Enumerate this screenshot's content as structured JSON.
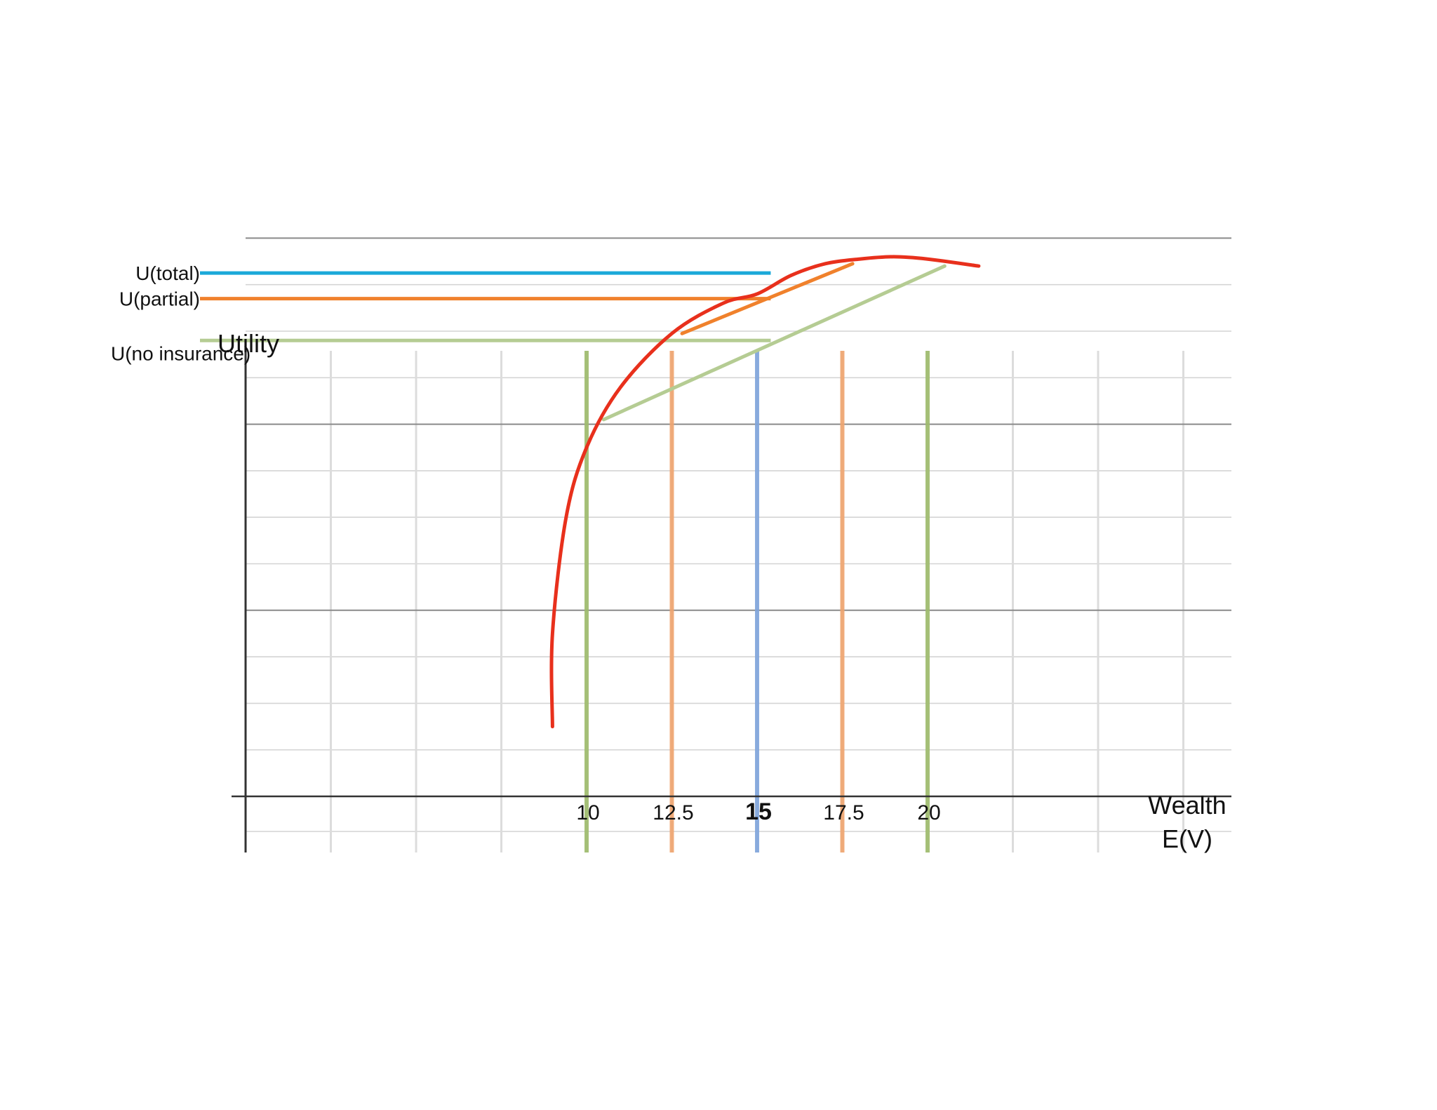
{
  "chart_data": {
    "type": "line",
    "title": "",
    "ylabel": "Utility",
    "xlabel": [
      "Wealth",
      "E(V)"
    ],
    "x_ticks": [
      {
        "value": 10,
        "label": "10",
        "color": "#9dbb6c",
        "bold": false
      },
      {
        "value": 12.5,
        "label": "12.5",
        "color": "#f0a46e",
        "bold": false
      },
      {
        "value": 15,
        "label": "15",
        "color": "#7ea4dc",
        "bold": true
      },
      {
        "value": 17.5,
        "label": "17.5",
        "color": "#f0a46e",
        "bold": false
      },
      {
        "value": 20,
        "label": "20",
        "color": "#9dbb6c",
        "bold": false
      }
    ],
    "xlim": [
      0,
      29
    ],
    "ylim": [
      0,
      12
    ],
    "grid": true,
    "utility_levels": [
      {
        "label": "U(total)",
        "y": 11.25,
        "x_end": 15.4,
        "color": "#1ba9d9"
      },
      {
        "label": "U(partial)",
        "y": 10.7,
        "x_end": 15.4,
        "color": "#f0812c"
      },
      {
        "label": "U(no insurance)",
        "y": 9.8,
        "x_end": 15.4,
        "color": "#b5cc93"
      }
    ],
    "utility_curve": {
      "color": "#e8301c",
      "points": [
        [
          9.0,
          1.5
        ],
        [
          9.0,
          3.5
        ],
        [
          9.4,
          6.0
        ],
        [
          10.0,
          7.5
        ],
        [
          11.0,
          8.8
        ],
        [
          12.5,
          9.95
        ],
        [
          14.0,
          10.6
        ],
        [
          15.0,
          10.8
        ],
        [
          16.0,
          11.2
        ],
        [
          17.0,
          11.45
        ],
        [
          18.0,
          11.55
        ],
        [
          19.0,
          11.6
        ],
        [
          20.0,
          11.55
        ],
        [
          21.5,
          11.4
        ]
      ]
    },
    "chords": [
      {
        "name": "",
        "color": "#b5cc93",
        "points": [
          [
            10.5,
            8.1
          ],
          [
            20.5,
            11.4
          ]
        ]
      },
      {
        "name": "",
        "color": "#f0812c",
        "points": [
          [
            12.8,
            9.95
          ],
          [
            17.8,
            11.45
          ]
        ]
      }
    ]
  }
}
